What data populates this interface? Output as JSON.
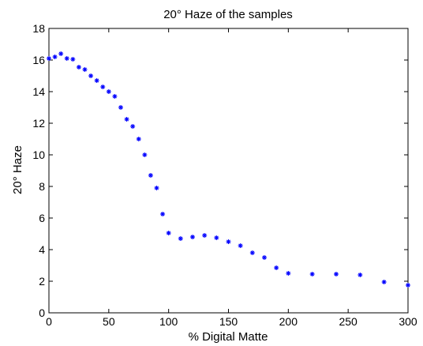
{
  "chart_data": {
    "type": "scatter",
    "title": "20° Haze of the samples",
    "xlabel": "% Digital Matte",
    "ylabel": "20° Haze",
    "xlim": [
      0,
      300
    ],
    "ylim": [
      0,
      18
    ],
    "xticks": [
      0,
      50,
      100,
      150,
      200,
      250,
      300
    ],
    "yticks": [
      0,
      2,
      4,
      6,
      8,
      10,
      12,
      14,
      16,
      18
    ],
    "marker": "asterisk",
    "marker_color": "#0000ff",
    "grid": false,
    "series": [
      {
        "x": [
          0,
          5,
          10,
          15,
          20,
          25,
          30,
          35,
          40,
          45,
          50,
          55,
          60,
          65,
          70,
          75,
          80,
          85,
          90,
          95,
          100,
          110,
          120,
          130,
          140,
          150,
          160,
          170,
          180,
          190,
          200,
          220,
          240,
          260,
          280,
          300
        ],
        "values": [
          16.1,
          16.2,
          16.4,
          16.1,
          16.05,
          15.55,
          15.4,
          15.0,
          14.7,
          14.3,
          14.0,
          13.7,
          13.0,
          12.25,
          11.8,
          11.0,
          10.0,
          8.7,
          7.9,
          6.25,
          5.05,
          4.7,
          4.8,
          4.9,
          4.75,
          4.5,
          4.25,
          3.8,
          3.5,
          2.85,
          2.5,
          2.45,
          2.45,
          2.4,
          1.95,
          1.75
        ]
      }
    ]
  }
}
